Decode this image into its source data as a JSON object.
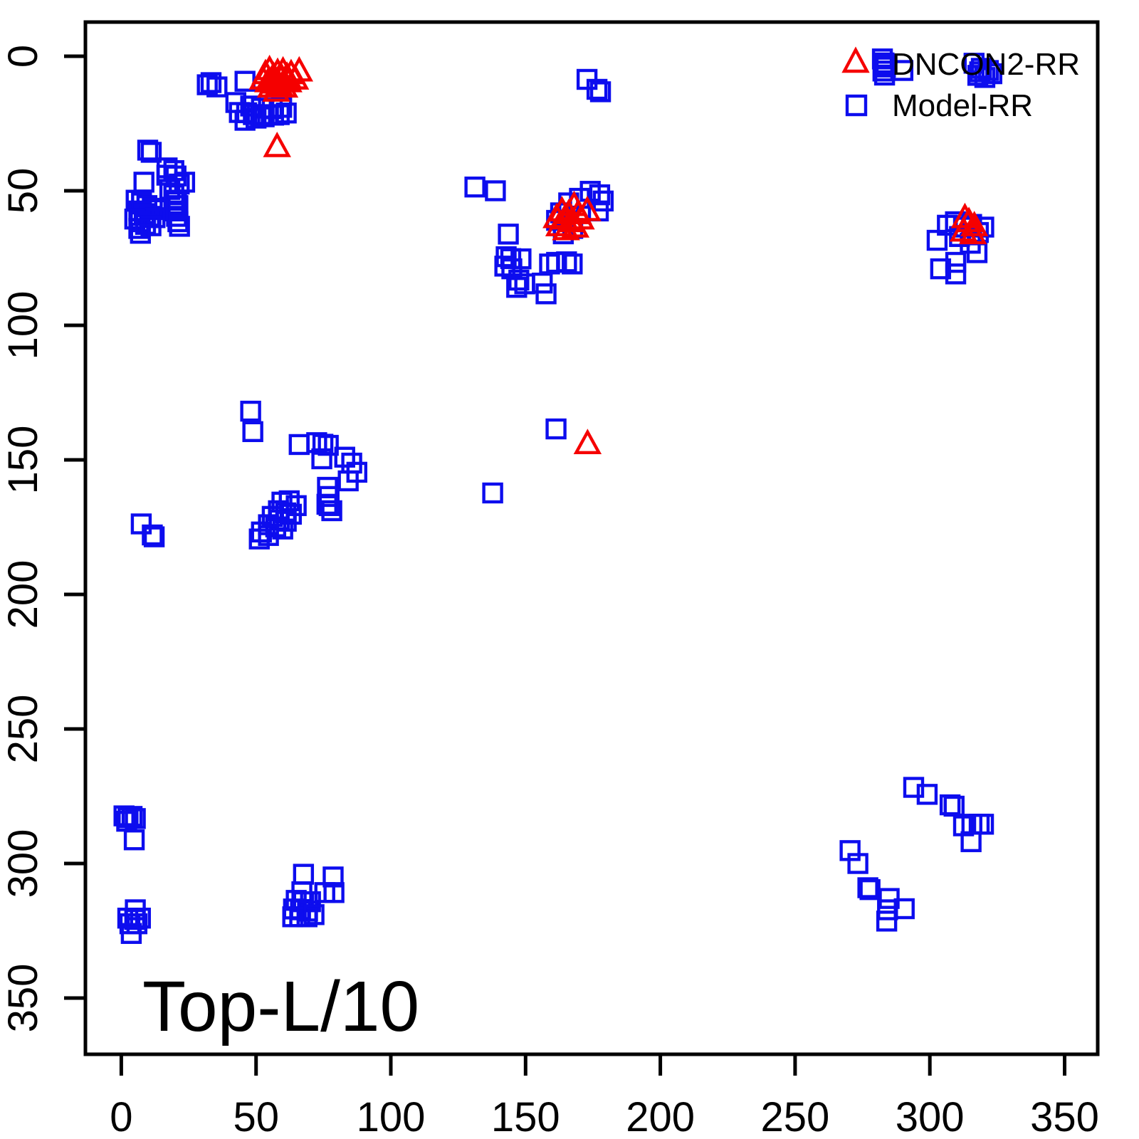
{
  "chart_data": {
    "type": "scatter",
    "title": "",
    "xlabel": "",
    "ylabel": "",
    "annotation": "Top-L/10",
    "x_ticks": [
      0,
      50,
      100,
      150,
      200,
      250,
      300,
      350
    ],
    "y_ticks": [
      0,
      50,
      100,
      150,
      200,
      250,
      300,
      350
    ],
    "xlim": [
      -13,
      362
    ],
    "ylim": [
      371,
      -13
    ],
    "y_axis_reversed": true,
    "grid": false,
    "legend_position": "top-right",
    "series": [
      {
        "name": "Model-RR",
        "marker": "square",
        "color": "#0d0dee",
        "points": [
          [
            31.9,
            10.6
          ],
          [
            33.3,
            9.8
          ],
          [
            35.5,
            11.4
          ],
          [
            45.9,
            9.3
          ],
          [
            42.5,
            17.2
          ],
          [
            43.8,
            20.9
          ],
          [
            45.9,
            23.8
          ],
          [
            46.5,
            21.0
          ],
          [
            48.0,
            18.5
          ],
          [
            49.0,
            21.7
          ],
          [
            50.0,
            23.0
          ],
          [
            51.7,
            21.9
          ],
          [
            52.0,
            19.3
          ],
          [
            53.0,
            22.5
          ],
          [
            54.3,
            21.7
          ],
          [
            56.0,
            19.5
          ],
          [
            56.5,
            21.9
          ],
          [
            58.6,
            21.7
          ],
          [
            59.5,
            19.0
          ],
          [
            61.2,
            21.1
          ],
          [
            9.8,
            34.9
          ],
          [
            11.1,
            35.7
          ],
          [
            17.0,
            41.5
          ],
          [
            19.5,
            42.5
          ],
          [
            16.9,
            44.2
          ],
          [
            20.3,
            44.5
          ],
          [
            23.5,
            46.8
          ],
          [
            21.5,
            47.5
          ],
          [
            8.4,
            46.8
          ],
          [
            18.0,
            49.5
          ],
          [
            19.5,
            51.5
          ],
          [
            20.5,
            53.5
          ],
          [
            21.0,
            55.5
          ],
          [
            19.5,
            57.5
          ],
          [
            20.5,
            59.5
          ],
          [
            21.0,
            61.5
          ],
          [
            5.5,
            53.5
          ],
          [
            7.5,
            54.5
          ],
          [
            9.5,
            55.5
          ],
          [
            11.5,
            56.5
          ],
          [
            13.5,
            57.0
          ],
          [
            6.5,
            57.5
          ],
          [
            8.5,
            58.5
          ],
          [
            10.5,
            59.5
          ],
          [
            12.5,
            60.0
          ],
          [
            5.0,
            60.5
          ],
          [
            7.0,
            61.5
          ],
          [
            9.0,
            62.5
          ],
          [
            11.0,
            63.0
          ],
          [
            6.5,
            64.0
          ],
          [
            7.1,
            65.8
          ],
          [
            21.6,
            63.2
          ],
          [
            172.8,
            8.6
          ],
          [
            176.5,
            12.3
          ],
          [
            177.8,
            13.2
          ],
          [
            282.4,
            1.0
          ],
          [
            283.0,
            2.5
          ],
          [
            283.5,
            4.0
          ],
          [
            282.6,
            5.5
          ],
          [
            283.2,
            7.0
          ],
          [
            283.7,
            3.0
          ],
          [
            290.0,
            5.3
          ],
          [
            316.4,
            2.6
          ],
          [
            319.1,
            4.5
          ],
          [
            321.7,
            5.3
          ],
          [
            317.8,
            7.1
          ],
          [
            320.4,
            7.9
          ],
          [
            318.5,
            5.8
          ],
          [
            323.0,
            6.5
          ],
          [
            131.2,
            48.6
          ],
          [
            138.8,
            50.0
          ],
          [
            166.0,
            54.5
          ],
          [
            170.0,
            52.8
          ],
          [
            174.0,
            50.2
          ],
          [
            177.5,
            51.5
          ],
          [
            178.8,
            53.8
          ],
          [
            177.0,
            57.5
          ],
          [
            163.0,
            58.2
          ],
          [
            161.5,
            61.0
          ],
          [
            164.0,
            66.0
          ],
          [
            167.5,
            64.0
          ],
          [
            143.6,
            66.1
          ],
          [
            142.8,
            74.5
          ],
          [
            144.5,
            75.2
          ],
          [
            148.3,
            75.3
          ],
          [
            142.3,
            78.0
          ],
          [
            144.9,
            79.0
          ],
          [
            147.5,
            83.2
          ],
          [
            149.7,
            84.6
          ],
          [
            146.7,
            85.9
          ],
          [
            156.2,
            84.3
          ],
          [
            157.6,
            88.3
          ],
          [
            158.9,
            77.2
          ],
          [
            161.5,
            76.6
          ],
          [
            165.2,
            76.4
          ],
          [
            167.3,
            77.2
          ],
          [
            302.7,
            68.4
          ],
          [
            306.5,
            62.8
          ],
          [
            309.5,
            61.5
          ],
          [
            312.5,
            63.5
          ],
          [
            315.5,
            62.5
          ],
          [
            318.0,
            65.5
          ],
          [
            311.0,
            67.0
          ],
          [
            315.0,
            69.5
          ],
          [
            317.5,
            73.0
          ],
          [
            309.6,
            76.6
          ],
          [
            304.0,
            79.0
          ],
          [
            309.6,
            80.9
          ],
          [
            320.0,
            63.5
          ],
          [
            161.3,
            138.5
          ],
          [
            137.8,
            162.3
          ],
          [
            48.0,
            131.9
          ],
          [
            48.8,
            139.5
          ],
          [
            66.0,
            144.3
          ],
          [
            72.5,
            143.6
          ],
          [
            74.8,
            144.2
          ],
          [
            76.8,
            144.6
          ],
          [
            74.4,
            149.6
          ],
          [
            82.9,
            149.0
          ],
          [
            85.5,
            151.2
          ],
          [
            87.4,
            154.6
          ],
          [
            84.2,
            157.8
          ],
          [
            76.5,
            160.2
          ],
          [
            77.1,
            163.6
          ],
          [
            76.3,
            166.5
          ],
          [
            77.1,
            167.0
          ],
          [
            78.1,
            168.9
          ],
          [
            59.6,
            165.7
          ],
          [
            62.3,
            165.2
          ],
          [
            64.9,
            167.0
          ],
          [
            58.3,
            168.9
          ],
          [
            61.0,
            169.7
          ],
          [
            63.1,
            170.2
          ],
          [
            56.0,
            171.0
          ],
          [
            58.6,
            172.3
          ],
          [
            61.2,
            172.8
          ],
          [
            54.6,
            174.1
          ],
          [
            57.3,
            174.9
          ],
          [
            59.9,
            175.7
          ],
          [
            52.0,
            176.8
          ],
          [
            54.6,
            178.1
          ],
          [
            51.2,
            179.4
          ],
          [
            7.4,
            173.8
          ],
          [
            11.5,
            177.9
          ],
          [
            12.2,
            178.6
          ],
          [
            1.0,
            282.3
          ],
          [
            2.5,
            283.0
          ],
          [
            4.0,
            282.5
          ],
          [
            5.2,
            283.3
          ],
          [
            2.0,
            284.3
          ],
          [
            4.8,
            291.2
          ],
          [
            5.2,
            317.2
          ],
          [
            2.4,
            320.3
          ],
          [
            5.0,
            320.8
          ],
          [
            7.1,
            320.3
          ],
          [
            3.2,
            322.4
          ],
          [
            5.8,
            322.4
          ],
          [
            3.7,
            326.0
          ],
          [
            67.6,
            304.0
          ],
          [
            78.6,
            305.0
          ],
          [
            75.5,
            310.8
          ],
          [
            78.9,
            310.8
          ],
          [
            67.0,
            310.5
          ],
          [
            64.9,
            313.7
          ],
          [
            67.6,
            314.2
          ],
          [
            70.2,
            314.2
          ],
          [
            63.9,
            316.9
          ],
          [
            66.5,
            317.2
          ],
          [
            69.1,
            317.7
          ],
          [
            63.6,
            319.8
          ],
          [
            66.2,
            319.8
          ],
          [
            68.9,
            319.8
          ],
          [
            71.5,
            319.0
          ],
          [
            294.0,
            271.7
          ],
          [
            299.0,
            274.3
          ],
          [
            307.5,
            278.2
          ],
          [
            309.0,
            278.7
          ],
          [
            312.5,
            286.0
          ],
          [
            315.6,
            285.4
          ],
          [
            318.3,
            285.4
          ],
          [
            319.9,
            285.4
          ],
          [
            315.3,
            291.9
          ],
          [
            270.4,
            295.2
          ],
          [
            273.3,
            300.0
          ],
          [
            277.0,
            309.0
          ],
          [
            277.8,
            309.7
          ],
          [
            284.9,
            313.0
          ],
          [
            284.3,
            317.2
          ],
          [
            290.5,
            316.8
          ],
          [
            284.0,
            321.4
          ]
        ]
      },
      {
        "name": "DNCON2-RR",
        "marker": "triangle",
        "color": "#f50000",
        "points": [
          [
            52.5,
            8.5
          ],
          [
            53.5,
            6.5
          ],
          [
            54.5,
            9.5
          ],
          [
            55.0,
            5.0
          ],
          [
            55.5,
            11.5
          ],
          [
            56.5,
            7.5
          ],
          [
            57.0,
            10.0
          ],
          [
            57.5,
            13.0
          ],
          [
            58.0,
            6.0
          ],
          [
            58.5,
            10.5
          ],
          [
            59.5,
            8.0
          ],
          [
            60.0,
            5.5
          ],
          [
            60.5,
            11.5
          ],
          [
            61.5,
            7.5
          ],
          [
            62.0,
            9.5
          ],
          [
            63.0,
            6.5
          ],
          [
            64.5,
            8.5
          ],
          [
            66.0,
            5.5
          ],
          [
            57.8,
            33.6
          ],
          [
            161.5,
            60.0
          ],
          [
            162.5,
            63.0
          ],
          [
            163.5,
            57.5
          ],
          [
            164.5,
            60.5
          ],
          [
            165.0,
            64.5
          ],
          [
            166.0,
            58.5
          ],
          [
            167.0,
            61.5
          ],
          [
            168.0,
            55.5
          ],
          [
            168.5,
            63.5
          ],
          [
            169.5,
            58.5
          ],
          [
            170.5,
            60.5
          ],
          [
            172.9,
            57.4
          ],
          [
            173.0,
            144.0
          ],
          [
            313.0,
            60.0
          ],
          [
            314.5,
            61.5
          ],
          [
            316.5,
            63.0
          ],
          [
            312.5,
            65.0
          ],
          [
            316.0,
            66.0
          ]
        ]
      }
    ],
    "legend": {
      "entries": [
        {
          "label": "DNCON2-RR",
          "marker": "triangle",
          "color": "#f50000"
        },
        {
          "label": "Model-RR",
          "marker": "square",
          "color": "#0d0dee"
        }
      ]
    }
  }
}
